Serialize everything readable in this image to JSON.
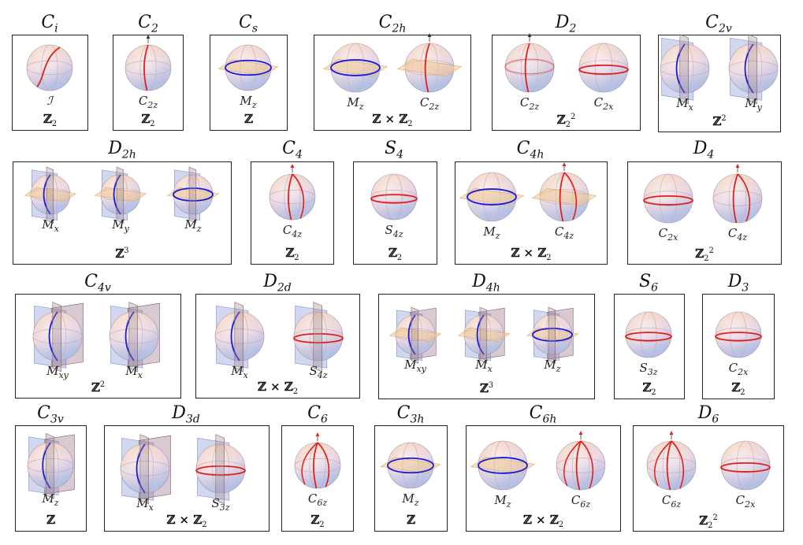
{
  "panels": [
    {
      "id": "Ci",
      "title": "C",
      "sub": "i",
      "group": "ℤ",
      "gsub": "2",
      "gsup": "",
      "spheres": [
        {
          "label": "ℐ",
          "sub": "",
          "kind": "inv",
          "plane": "none"
        }
      ]
    },
    {
      "id": "C2",
      "title": "C",
      "sub": "2",
      "group": "ℤ",
      "gsub": "2",
      "gsup": "",
      "spheres": [
        {
          "label": "C",
          "sub": "2z",
          "kind": "rot2",
          "plane": "none"
        }
      ]
    },
    {
      "id": "Cs",
      "title": "C",
      "sub": "s",
      "group": "ℤ",
      "gsub": "",
      "gsup": "",
      "spheres": [
        {
          "label": "M",
          "sub": "z",
          "kind": "mirror",
          "plane": "h"
        }
      ]
    },
    {
      "id": "C2h",
      "title": "C",
      "sub": "2h",
      "group": "ℤ × ℤ",
      "gsub": "2",
      "gsup": "",
      "spheres": [
        {
          "label": "M",
          "sub": "z",
          "kind": "mirror",
          "plane": "h"
        },
        {
          "label": "C",
          "sub": "2z",
          "kind": "rot2",
          "plane": "h"
        }
      ]
    },
    {
      "id": "D2",
      "title": "D",
      "sub": "2",
      "group": "ℤ",
      "gsub": "2",
      "gsup": "2",
      "spheres": [
        {
          "label": "C",
          "sub": "2z",
          "kind": "rot2x",
          "plane": "none"
        },
        {
          "label": "C",
          "sub": "2x",
          "kind": "equator",
          "plane": "none"
        }
      ]
    },
    {
      "id": "C2v",
      "title": "C",
      "sub": "2v",
      "group": "ℤ",
      "gsub": "",
      "gsup": "2",
      "spheres": [
        {
          "label": "M",
          "sub": "x",
          "kind": "mirrorv",
          "plane": "v"
        },
        {
          "label": "M",
          "sub": "y",
          "kind": "mirrorv",
          "plane": "v"
        }
      ]
    },
    {
      "id": "D2h",
      "title": "D",
      "sub": "2h",
      "group": "ℤ",
      "gsub": "",
      "gsup": "3",
      "spheres": [
        {
          "label": "M",
          "sub": "x",
          "kind": "mirrorv",
          "plane": "vh"
        },
        {
          "label": "M",
          "sub": "y",
          "kind": "mirrorv",
          "plane": "vh"
        },
        {
          "label": "M",
          "sub": "z",
          "kind": "mirror",
          "plane": "vh"
        }
      ]
    },
    {
      "id": "C4",
      "title": "C",
      "sub": "4",
      "group": "ℤ",
      "gsub": "2",
      "gsup": "",
      "spheres": [
        {
          "label": "C",
          "sub": "4z",
          "kind": "rot4",
          "plane": "none"
        }
      ]
    },
    {
      "id": "S4",
      "title": "S",
      "sub": "4",
      "group": "ℤ",
      "gsub": "2",
      "gsup": "",
      "spheres": [
        {
          "label": "S",
          "sub": "4z",
          "kind": "equator",
          "plane": "none"
        }
      ]
    },
    {
      "id": "C4h",
      "title": "C",
      "sub": "4h",
      "group": "ℤ × ℤ",
      "gsub": "2",
      "gsup": "",
      "spheres": [
        {
          "label": "M",
          "sub": "z",
          "kind": "mirror",
          "plane": "h"
        },
        {
          "label": "C",
          "sub": "4z",
          "kind": "rot4",
          "plane": "h"
        }
      ]
    },
    {
      "id": "D4",
      "title": "D",
      "sub": "4",
      "group": "ℤ",
      "gsub": "2",
      "gsup": "2",
      "spheres": [
        {
          "label": "C",
          "sub": "2x",
          "kind": "equator",
          "plane": "none"
        },
        {
          "label": "C",
          "sub": "4z",
          "kind": "rot4",
          "plane": "none"
        }
      ]
    },
    {
      "id": "C4v",
      "title": "C",
      "sub": "4v",
      "group": "ℤ",
      "gsub": "",
      "gsup": "2",
      "spheres": [
        {
          "label": "M",
          "sub": "xy",
          "kind": "mirrorv",
          "plane": "vv"
        },
        {
          "label": "M",
          "sub": "x",
          "kind": "mirrorv",
          "plane": "vv"
        }
      ]
    },
    {
      "id": "D2d",
      "title": "D",
      "sub": "2d",
      "group": "ℤ × ℤ",
      "gsub": "2",
      "gsup": "",
      "spheres": [
        {
          "label": "M",
          "sub": "x",
          "kind": "mirrorv",
          "plane": "v"
        },
        {
          "label": "S",
          "sub": "4z",
          "kind": "equator",
          "plane": "v"
        }
      ]
    },
    {
      "id": "D4h",
      "title": "D",
      "sub": "4h",
      "group": "ℤ",
      "gsub": "",
      "gsup": "3",
      "spheres": [
        {
          "label": "M",
          "sub": "xy",
          "kind": "mirrorv",
          "plane": "vvh"
        },
        {
          "label": "M",
          "sub": "x",
          "kind": "mirrorv",
          "plane": "vvh"
        },
        {
          "label": "M",
          "sub": "z",
          "kind": "mirror",
          "plane": "vvh"
        }
      ]
    },
    {
      "id": "S6",
      "title": "S",
      "sub": "6",
      "group": "ℤ",
      "gsub": "2",
      "gsup": "",
      "spheres": [
        {
          "label": "S",
          "sub": "3z",
          "kind": "equator",
          "plane": "none"
        }
      ]
    },
    {
      "id": "D3",
      "title": "D",
      "sub": "3",
      "group": "ℤ",
      "gsub": "2",
      "gsup": "",
      "spheres": [
        {
          "label": "C",
          "sub": "2x",
          "kind": "equator",
          "plane": "none"
        }
      ]
    },
    {
      "id": "C3v",
      "title": "C",
      "sub": "3v",
      "group": "ℤ",
      "gsub": "",
      "gsup": "",
      "spheres": [
        {
          "label": "M",
          "sub": "z",
          "kind": "mirrorv",
          "plane": "vv"
        }
      ]
    },
    {
      "id": "D3d",
      "title": "D",
      "sub": "3d",
      "group": "ℤ × ℤ",
      "gsub": "2",
      "gsup": "",
      "spheres": [
        {
          "label": "M",
          "sub": "x",
          "kind": "mirrorv",
          "plane": "vv"
        },
        {
          "label": "S",
          "sub": "3z",
          "kind": "equator",
          "plane": "v"
        }
      ]
    },
    {
      "id": "C6",
      "title": "C",
      "sub": "6",
      "group": "ℤ",
      "gsub": "2",
      "gsup": "",
      "spheres": [
        {
          "label": "C",
          "sub": "6z",
          "kind": "rot6",
          "plane": "none"
        }
      ]
    },
    {
      "id": "C3h",
      "title": "C",
      "sub": "3h",
      "group": "ℤ",
      "gsub": "",
      "gsup": "",
      "spheres": [
        {
          "label": "M",
          "sub": "z",
          "kind": "mirror",
          "plane": "h"
        }
      ]
    },
    {
      "id": "C6h",
      "title": "C",
      "sub": "6h",
      "group": "ℤ × ℤ",
      "gsub": "2",
      "gsup": "",
      "spheres": [
        {
          "label": "M",
          "sub": "z",
          "kind": "mirror",
          "plane": "h"
        },
        {
          "label": "C",
          "sub": "6z",
          "kind": "rot6",
          "plane": "none"
        }
      ]
    },
    {
      "id": "D6",
      "title": "D",
      "sub": "6",
      "group": "ℤ",
      "gsub": "2",
      "gsup": "2",
      "spheres": [
        {
          "label": "C",
          "sub": "6z",
          "kind": "rot6",
          "plane": "none"
        },
        {
          "label": "C",
          "sub": "2x",
          "kind": "equator",
          "plane": "none"
        }
      ]
    }
  ],
  "colors": {
    "frame": "#222222",
    "red": "#e0201c",
    "blue": "#1a1ad8",
    "plane_h": "#f2c890",
    "plane_v": "#9aa6dc",
    "plane_d": "#a07890",
    "sphere_top": "#f6c8a8",
    "sphere_bottom": "#b4c0e4"
  }
}
